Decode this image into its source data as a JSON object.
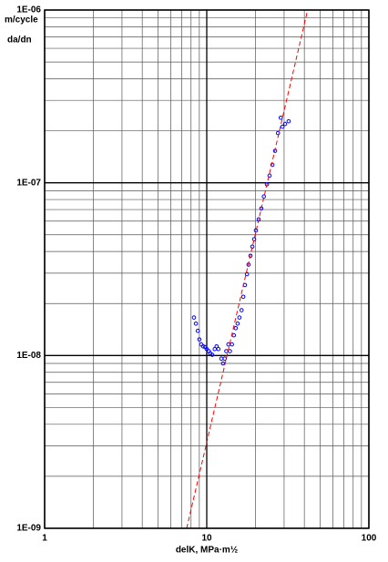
{
  "chart_data": {
    "type": "scatter",
    "x_label": "delK, MPa·m½",
    "y_label_units": "m/cycle",
    "y_label": "da/dn",
    "log_x": true,
    "log_y": true,
    "grid": true,
    "xlim": [
      1,
      100
    ],
    "ylim": [
      1e-09,
      1e-06
    ],
    "xticks": [
      1,
      10,
      100
    ],
    "yticks": [
      {
        "value": 1e-09,
        "label": "1E-09"
      },
      {
        "value": 1e-08,
        "label": "1E-08"
      },
      {
        "value": 1e-07,
        "label": "1E-07"
      },
      {
        "value": 1e-06,
        "label": "1E-06"
      }
    ],
    "x_minor_ticks": [
      2,
      3,
      4,
      5,
      6,
      7,
      8,
      9,
      20,
      30,
      40,
      50,
      60,
      70,
      80,
      90
    ],
    "y_minor_ticks": [
      2e-09,
      3e-09,
      4e-09,
      5e-09,
      6e-09,
      7e-09,
      8e-09,
      9e-09,
      2e-08,
      3e-08,
      4e-08,
      5e-08,
      6e-08,
      7e-08,
      8e-08,
      9e-08,
      2e-07,
      3e-07,
      4e-07,
      5e-07,
      6e-07,
      7e-07,
      8e-07,
      9e-07
    ],
    "series": [
      {
        "color": "#0000ff",
        "marker": "circle",
        "x": [
          8.34,
          8.57,
          8.8,
          9.0,
          9.25,
          9.5,
          9.76,
          10.0,
          10.3,
          10.5,
          10.8,
          11.2,
          11.5,
          11.8,
          12.3,
          12.6,
          12.9,
          13.2,
          13.6,
          13.9,
          14.3,
          14.7,
          15.1,
          15.5,
          15.9,
          16.4,
          16.8,
          17.2,
          17.7,
          18.1,
          18.6,
          19.1,
          19.6,
          20.1,
          20.9,
          21.7,
          22.5,
          23.5,
          24.4,
          25.4,
          26.4,
          27.5,
          28.6,
          29.3,
          30.4,
          32.0
        ],
        "values": [
          1.66e-08,
          1.53e-08,
          1.39e-08,
          1.24e-08,
          1.16e-08,
          1.13e-08,
          1.12e-08,
          1.09e-08,
          1.06e-08,
          1.03e-08,
          1.01e-08,
          1.09e-08,
          1.13e-08,
          1.09e-08,
          9.6e-09,
          9e-09,
          9.6e-09,
          1.06e-08,
          1.16e-08,
          1.06e-08,
          1.16e-08,
          1.31e-08,
          1.44e-08,
          1.53e-08,
          1.66e-08,
          1.83e-08,
          2.19e-08,
          2.56e-08,
          2.96e-08,
          3.36e-08,
          3.78e-08,
          4.27e-08,
          4.71e-08,
          5.3e-08,
          6.14e-08,
          7.1e-08,
          8.33e-08,
          9.8e-08,
          1.1e-07,
          1.27e-07,
          1.53e-07,
          1.94e-07,
          2.38e-07,
          2.11e-07,
          2.19e-07,
          2.27e-07
        ]
      },
      {
        "color": "#ff0000",
        "style": "dashed",
        "x": [
          7.52,
          41.9
        ],
        "values": [
          1e-09,
          1e-06
        ]
      }
    ]
  }
}
